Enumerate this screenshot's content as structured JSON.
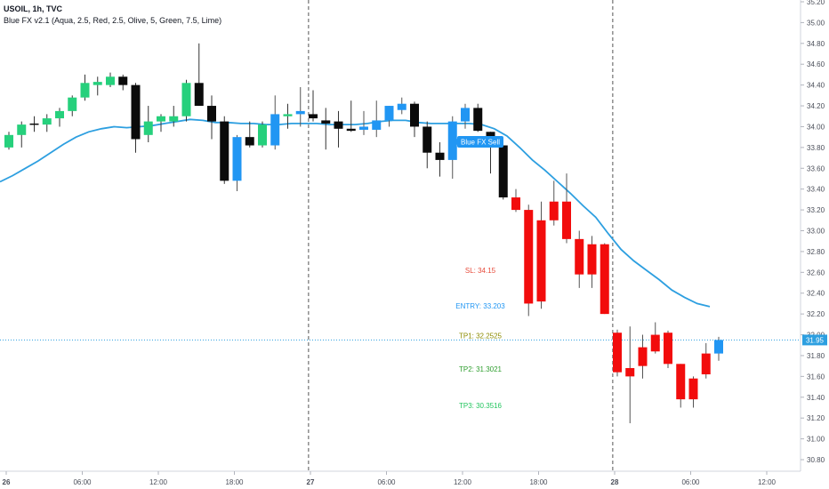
{
  "header": {
    "symbol_line": "USOIL, 1h, TVC",
    "indicator_line": "Blue FX v2.1 (Aqua, 2.5, Red, 2.5, Olive, 5, Green, 7.5, Lime)"
  },
  "colors": {
    "bull": "#26d07c",
    "bear": "#0b0b0b",
    "aqua": "#2196f3",
    "red": "#f20c0c",
    "ema": "#2d9fe0",
    "last_price_line": "#2d9fe0",
    "sl": "#e74c3c",
    "entry": "#2196f3",
    "tp1": "#8b8b00",
    "tp2": "#2e9e2e",
    "tp3": "#22c55e"
  },
  "chart_data": {
    "type": "candlestick",
    "ylim": [
      30.7,
      35.3
    ],
    "y_ticks": [
      "35.20",
      "35.00",
      "34.80",
      "34.60",
      "34.40",
      "34.20",
      "34.00",
      "33.80",
      "33.60",
      "33.40",
      "33.20",
      "33.00",
      "32.80",
      "32.60",
      "32.40",
      "32.20",
      "32.00",
      "31.80",
      "31.60",
      "31.40",
      "31.20",
      "31.00",
      "30.80"
    ],
    "x_ticks": [
      "26",
      "06:00",
      "12:00",
      "18:00",
      "27",
      "06:00",
      "12:00",
      "18:00",
      "28",
      "06:00",
      "12:00"
    ],
    "x_tick_index": [
      0,
      6,
      12,
      18,
      24,
      30,
      36,
      42,
      48,
      54,
      60
    ],
    "day_separators": [
      23.5,
      47.5
    ],
    "candles": [
      {
        "o": 33.8,
        "h": 33.95,
        "l": 33.78,
        "c": 33.92,
        "k": "bull"
      },
      {
        "o": 33.92,
        "h": 34.05,
        "l": 33.8,
        "c": 34.02,
        "k": "bull"
      },
      {
        "o": 34.02,
        "h": 34.1,
        "l": 33.95,
        "c": 34.03,
        "k": "bear"
      },
      {
        "o": 34.02,
        "h": 34.12,
        "l": 33.95,
        "c": 34.08,
        "k": "bull"
      },
      {
        "o": 34.08,
        "h": 34.18,
        "l": 34.0,
        "c": 34.15,
        "k": "bull"
      },
      {
        "o": 34.15,
        "h": 34.3,
        "l": 34.1,
        "c": 34.28,
        "k": "bull"
      },
      {
        "o": 34.28,
        "h": 34.5,
        "l": 34.25,
        "c": 34.42,
        "k": "bull"
      },
      {
        "o": 34.4,
        "h": 34.48,
        "l": 34.3,
        "c": 34.43,
        "k": "bull"
      },
      {
        "o": 34.4,
        "h": 34.52,
        "l": 34.38,
        "c": 34.48,
        "k": "bull"
      },
      {
        "o": 34.48,
        "h": 34.5,
        "l": 34.35,
        "c": 34.4,
        "k": "bear"
      },
      {
        "o": 34.4,
        "h": 34.42,
        "l": 33.75,
        "c": 33.88,
        "k": "bear"
      },
      {
        "o": 33.92,
        "h": 34.2,
        "l": 33.85,
        "c": 34.05,
        "k": "bull"
      },
      {
        "o": 34.05,
        "h": 34.12,
        "l": 33.95,
        "c": 34.1,
        "k": "bull"
      },
      {
        "o": 34.05,
        "h": 34.2,
        "l": 34.0,
        "c": 34.1,
        "k": "bull"
      },
      {
        "o": 34.1,
        "h": 34.45,
        "l": 34.05,
        "c": 34.42,
        "k": "bull"
      },
      {
        "o": 34.42,
        "h": 34.8,
        "l": 34.2,
        "c": 34.2,
        "k": "bear"
      },
      {
        "o": 34.2,
        "h": 34.3,
        "l": 33.88,
        "c": 34.05,
        "k": "bear"
      },
      {
        "o": 34.05,
        "h": 34.1,
        "l": 33.45,
        "c": 33.48,
        "k": "bear"
      },
      {
        "o": 33.48,
        "h": 33.92,
        "l": 33.38,
        "c": 33.9,
        "k": "aqua"
      },
      {
        "o": 33.9,
        "h": 34.05,
        "l": 33.8,
        "c": 33.82,
        "k": "bear"
      },
      {
        "o": 33.82,
        "h": 34.05,
        "l": 33.8,
        "c": 34.02,
        "k": "bull"
      },
      {
        "o": 33.82,
        "h": 34.3,
        "l": 33.78,
        "c": 34.12,
        "k": "aqua"
      },
      {
        "o": 34.1,
        "h": 34.22,
        "l": 33.98,
        "c": 34.12,
        "k": "bull"
      },
      {
        "o": 34.12,
        "h": 34.38,
        "l": 34.0,
        "c": 34.15,
        "k": "aqua"
      },
      {
        "o": 34.12,
        "h": 34.35,
        "l": 34.05,
        "c": 34.08,
        "k": "bear"
      },
      {
        "o": 34.06,
        "h": 34.18,
        "l": 33.78,
        "c": 34.03,
        "k": "bear"
      },
      {
        "o": 34.05,
        "h": 34.15,
        "l": 33.8,
        "c": 33.98,
        "k": "bear"
      },
      {
        "o": 33.98,
        "h": 34.25,
        "l": 33.95,
        "c": 33.96,
        "k": "bear"
      },
      {
        "o": 34.0,
        "h": 34.15,
        "l": 33.92,
        "c": 33.97,
        "k": "aqua"
      },
      {
        "o": 33.97,
        "h": 34.25,
        "l": 33.9,
        "c": 34.06,
        "k": "aqua"
      },
      {
        "o": 34.06,
        "h": 34.2,
        "l": 34.0,
        "c": 34.2,
        "k": "aqua"
      },
      {
        "o": 34.16,
        "h": 34.28,
        "l": 34.12,
        "c": 34.22,
        "k": "aqua"
      },
      {
        "o": 34.22,
        "h": 34.24,
        "l": 33.9,
        "c": 34.0,
        "k": "bear"
      },
      {
        "o": 34.0,
        "h": 34.05,
        "l": 33.6,
        "c": 33.75,
        "k": "bear"
      },
      {
        "o": 33.75,
        "h": 33.85,
        "l": 33.52,
        "c": 33.68,
        "k": "bear"
      },
      {
        "o": 33.68,
        "h": 34.1,
        "l": 33.5,
        "c": 34.05,
        "k": "aqua"
      },
      {
        "o": 34.05,
        "h": 34.22,
        "l": 33.98,
        "c": 34.18,
        "k": "aqua"
      },
      {
        "o": 34.18,
        "h": 34.22,
        "l": 33.95,
        "c": 33.96,
        "k": "bear"
      },
      {
        "o": 33.95,
        "h": 33.95,
        "l": 33.55,
        "c": 33.8,
        "k": "bear"
      },
      {
        "o": 33.82,
        "h": 33.82,
        "l": 33.3,
        "c": 33.32,
        "k": "bear"
      },
      {
        "o": 33.32,
        "h": 33.4,
        "l": 33.18,
        "c": 33.2,
        "k": "red"
      },
      {
        "o": 33.2,
        "h": 33.25,
        "l": 32.18,
        "c": 32.3,
        "k": "red"
      },
      {
        "o": 33.1,
        "h": 33.28,
        "l": 32.25,
        "c": 32.32,
        "k": "red"
      },
      {
        "o": 33.28,
        "h": 33.48,
        "l": 33.05,
        "c": 33.1,
        "k": "red"
      },
      {
        "o": 33.28,
        "h": 33.55,
        "l": 32.88,
        "c": 32.92,
        "k": "red"
      },
      {
        "o": 32.92,
        "h": 33.0,
        "l": 32.45,
        "c": 32.58,
        "k": "red"
      },
      {
        "o": 32.87,
        "h": 32.95,
        "l": 32.45,
        "c": 32.58,
        "k": "red"
      },
      {
        "o": 32.87,
        "h": 32.88,
        "l": 32.2,
        "c": 32.2,
        "k": "red"
      },
      {
        "o": 32.02,
        "h": 32.05,
        "l": 31.6,
        "c": 31.64,
        "k": "red"
      },
      {
        "o": 31.68,
        "h": 32.08,
        "l": 31.15,
        "c": 31.6,
        "k": "red"
      },
      {
        "o": 31.7,
        "h": 32.0,
        "l": 31.58,
        "c": 31.88,
        "k": "red"
      },
      {
        "o": 32.0,
        "h": 32.12,
        "l": 31.82,
        "c": 31.84,
        "k": "red"
      },
      {
        "o": 32.02,
        "h": 32.04,
        "l": 31.68,
        "c": 31.72,
        "k": "red"
      },
      {
        "o": 31.72,
        "h": 31.72,
        "l": 31.3,
        "c": 31.38,
        "k": "red"
      },
      {
        "o": 31.58,
        "h": 31.6,
        "l": 31.3,
        "c": 31.38,
        "k": "red"
      },
      {
        "o": 31.62,
        "h": 31.92,
        "l": 31.58,
        "c": 31.82,
        "k": "red"
      },
      {
        "o": 31.82,
        "h": 31.98,
        "l": 31.75,
        "c": 31.95,
        "k": "aqua"
      }
    ],
    "ema": [
      33.47,
      33.53,
      33.6,
      33.67,
      33.75,
      33.83,
      33.9,
      33.95,
      33.98,
      34.0,
      33.99,
      34.0,
      34.01,
      34.03,
      34.05,
      34.07,
      34.06,
      34.04,
      34.04,
      34.03,
      34.03,
      34.02,
      34.02,
      34.03,
      34.03,
      34.03,
      34.02,
      34.02,
      34.02,
      34.03,
      34.05,
      34.06,
      34.06,
      34.04,
      34.03,
      34.03,
      34.03,
      34.03,
      34.02,
      33.98,
      33.91,
      33.8,
      33.68,
      33.58,
      33.47,
      33.36,
      33.24,
      33.13,
      32.97,
      32.82,
      32.71,
      32.62,
      32.53,
      32.43,
      32.36,
      32.3,
      32.27
    ],
    "last_price": "31.95",
    "signal_label": "Blue FX Sell",
    "levels": [
      {
        "label": "SL: 34.15",
        "value": 32.62,
        "key": "sl"
      },
      {
        "label": "ENTRY: 33.203",
        "value": 32.28,
        "key": "entry"
      },
      {
        "label": "TP1: 32.2525",
        "value": 31.99,
        "key": "tp1"
      },
      {
        "label": "TP2: 31.3021",
        "value": 31.67,
        "key": "tp2"
      },
      {
        "label": "TP3: 30.3516",
        "value": 31.32,
        "key": "tp3"
      }
    ]
  }
}
